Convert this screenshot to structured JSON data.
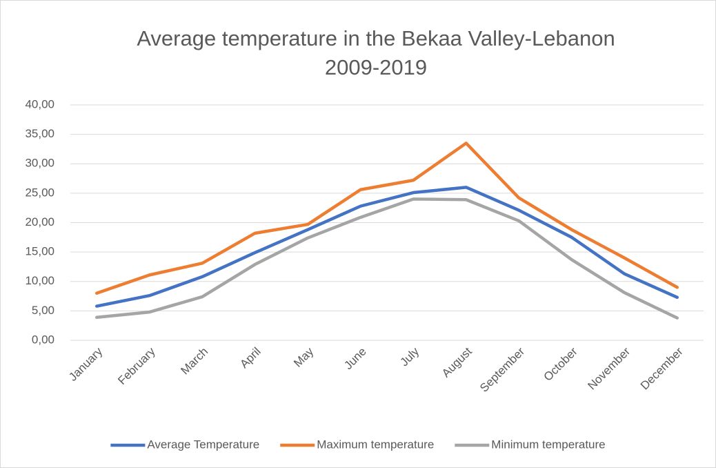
{
  "chart_data": {
    "type": "line",
    "title": [
      "Average temperature in the Bekaa Valley-Lebanon",
      "2009-2019"
    ],
    "categories": [
      "January",
      "February",
      "March",
      "April",
      "May",
      "June",
      "July",
      "August",
      "September",
      "October",
      "November",
      "December"
    ],
    "series": [
      {
        "name": "Average Temperature",
        "color": "#4472c4",
        "values": [
          5.8,
          7.6,
          10.8,
          14.9,
          18.8,
          22.8,
          25.1,
          26.0,
          22.1,
          17.5,
          11.3,
          7.3
        ]
      },
      {
        "name": "Maximum temperature",
        "color": "#ed7d31",
        "values": [
          8.0,
          11.1,
          13.1,
          18.2,
          19.7,
          25.6,
          27.2,
          33.5,
          24.2,
          18.8,
          14.0,
          9.0
        ]
      },
      {
        "name": "Minimum temperature",
        "color": "#a5a5a5",
        "values": [
          3.9,
          4.8,
          7.4,
          12.9,
          17.4,
          20.9,
          24.0,
          23.9,
          20.3,
          13.7,
          8.1,
          3.8
        ]
      }
    ],
    "ylim": [
      0,
      40
    ],
    "yticks": [
      {
        "value": 0,
        "label": "0,00"
      },
      {
        "value": 5,
        "label": "5,00"
      },
      {
        "value": 10,
        "label": "10,00"
      },
      {
        "value": 15,
        "label": "15,00"
      },
      {
        "value": 20,
        "label": "20,00"
      },
      {
        "value": 25,
        "label": "25,00"
      },
      {
        "value": 30,
        "label": "30,00"
      },
      {
        "value": 35,
        "label": "35,00"
      },
      {
        "value": 40,
        "label": "40,00"
      }
    ],
    "grid": true,
    "legend": "bottom"
  }
}
